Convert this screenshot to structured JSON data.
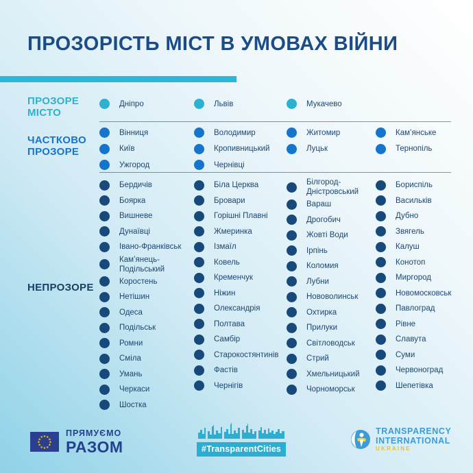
{
  "title": "ПРОЗОРІСТЬ МІСТ В УМОВАХ ВІЙНИ",
  "colors": {
    "title_text": "#1b4c87",
    "accent_bar": "#29b7d9",
    "transparent": "#2cb2cf",
    "partial": "#1575cd",
    "opaque_dot": "#17497b",
    "opaque_label": "#164064",
    "city_text": "#1d4670",
    "eu_text": "#24418f",
    "hashtag_bg": "#2aaed2",
    "ti_blue": "#3e9bd5",
    "ti_yellow": "#edbe21"
  },
  "sections": [
    {
      "id": "transparent",
      "label_lines": [
        "ПРОЗОРЕ",
        "МІСТО"
      ],
      "columns": [
        [
          "Дніпро"
        ],
        [
          "Львів"
        ],
        [
          "Мукачево"
        ],
        []
      ]
    },
    {
      "id": "partial",
      "label_lines": [
        "ЧАСТКОВО",
        "ПРОЗОРЕ"
      ],
      "columns": [
        [
          "Вінниця",
          "Київ",
          "Ужгород"
        ],
        [
          "Володимир",
          "Кропивницький",
          "Чернівці"
        ],
        [
          "Житомир",
          "Луцьк"
        ],
        [
          "Кам’янське",
          "Тернопіль"
        ]
      ]
    },
    {
      "id": "opaque",
      "label_lines": [
        "НЕПРОЗОРЕ"
      ],
      "columns": [
        [
          "Бердичів",
          "Боярка",
          "Вишневе",
          "Дунаївці",
          "Івано-Франківськ",
          "Кам’янець-Подільський",
          "Коростень",
          "Нетішин",
          "Одеса",
          "Подільськ",
          "Ромни",
          "Сміла",
          "Умань",
          "Черкаси",
          "Шостка"
        ],
        [
          "Біла Церква",
          "Бровари",
          "Горішні Плавні",
          "Жмеринка",
          "Ізмаїл",
          "Ковель",
          "Кременчук",
          "Ніжин",
          "Олександрія",
          "Полтава",
          "Самбір",
          "Старокостянтинів",
          "Фастів",
          "Чернігів"
        ],
        [
          "Білгород-Дністровський",
          "Вараш",
          "Дрогобич",
          "Жовті Води",
          "Ірпінь",
          "Коломия",
          "Лубни",
          "Нововолинськ",
          "Охтирка",
          "Прилуки",
          "Світловодськ",
          "Стрий",
          "Хмельницький",
          "Чорноморськ"
        ],
        [
          "Бориспіль",
          "Васильків",
          "Дубно",
          "Звягель",
          "Калуш",
          "Конотоп",
          "Миргород",
          "Новомосковськ",
          "Павлоград",
          "Рівне",
          "Славута",
          "Суми",
          "Червоноград",
          "Шепетівка"
        ]
      ]
    }
  ],
  "footer": {
    "eu_program": {
      "line1": "ПРЯМУЄМО",
      "line2": "РАЗОМ"
    },
    "hashtag": "#TransparentCities",
    "ti": {
      "line1": "TRANSPARENCY",
      "line2": "INTERNATIONAL",
      "line3": "UKRAINE"
    }
  }
}
